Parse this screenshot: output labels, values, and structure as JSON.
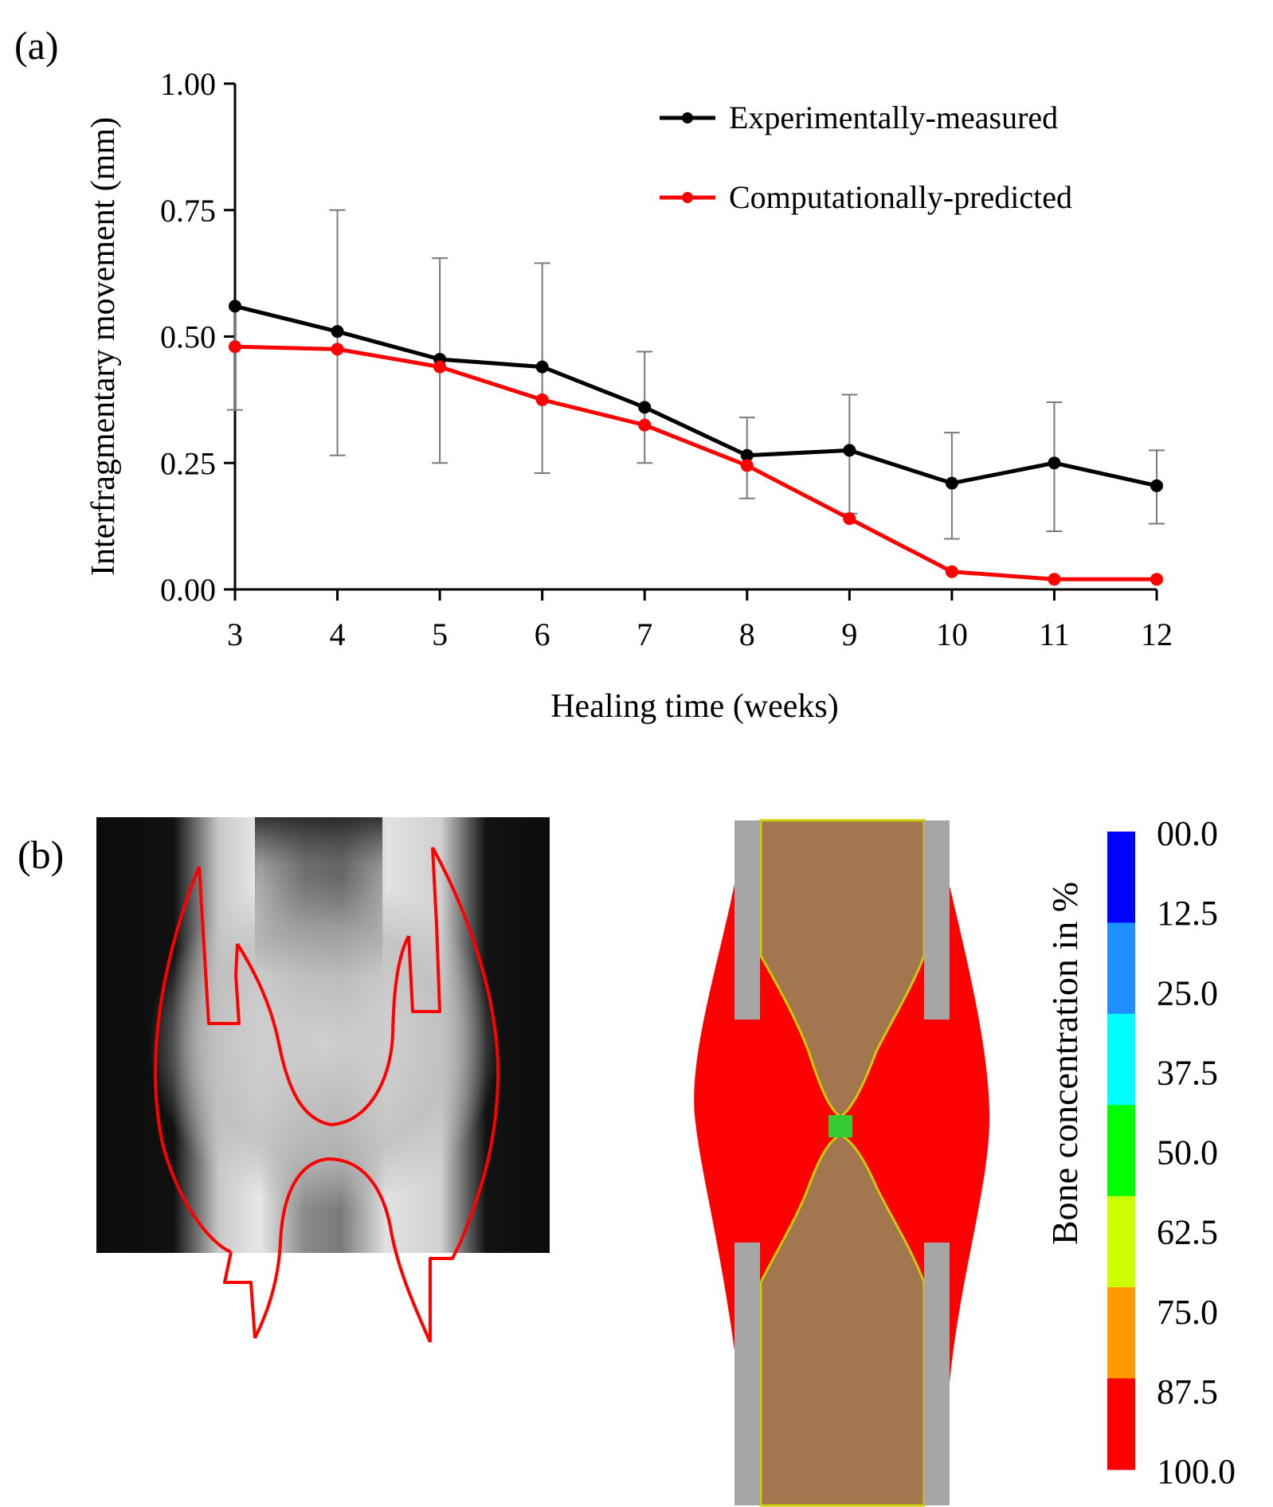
{
  "panels": {
    "a": {
      "label": "(a)"
    },
    "b": {
      "label": "(b)"
    }
  },
  "chart_data": {
    "type": "line",
    "title": "",
    "xlabel": "Healing time (weeks)",
    "ylabel": "Interfragmentary movement (mm)",
    "x": [
      3,
      4,
      5,
      6,
      7,
      8,
      9,
      10,
      11,
      12
    ],
    "xlim": [
      3,
      12
    ],
    "ylim": [
      0,
      1
    ],
    "yticks": [
      0,
      0.25,
      0.5,
      0.75,
      1.0
    ],
    "ytick_labels": [
      "0.00",
      "0.25",
      "0.50",
      "0.75",
      "1.00"
    ],
    "xtick_labels": [
      "3",
      "4",
      "5",
      "6",
      "7",
      "8",
      "9",
      "10",
      "11",
      "12"
    ],
    "grid": false,
    "legend_position": "top-right",
    "series": [
      {
        "name": "Experimentally-measured",
        "color": "#000000",
        "values": [
          0.56,
          0.51,
          0.455,
          0.44,
          0.36,
          0.265,
          0.275,
          0.21,
          0.25,
          0.205
        ],
        "error_upper": [
          null,
          0.75,
          0.655,
          0.645,
          0.47,
          0.34,
          0.385,
          0.31,
          0.37,
          0.275
        ],
        "error_lower": [
          0.355,
          0.265,
          0.25,
          0.23,
          0.25,
          0.18,
          0.15,
          0.1,
          0.115,
          0.13
        ]
      },
      {
        "name": "Computationally-predicted",
        "color": "#ff0000",
        "values": [
          0.48,
          0.475,
          0.44,
          0.375,
          0.325,
          0.245,
          0.14,
          0.035,
          0.02,
          0.02
        ]
      }
    ]
  },
  "colorbar": {
    "title": "Bone concentration in %",
    "labels": [
      "00.0",
      "12.5",
      "25.0",
      "37.5",
      "50.0",
      "62.5",
      "75.0",
      "87.5",
      "100.0"
    ],
    "colors": [
      "#0000ff",
      "#1e90ff",
      "#00ffff",
      "#00ff00",
      "#ccff00",
      "#ff9900",
      "#ff0000"
    ]
  },
  "colors": {
    "experimental": "#000000",
    "predicted": "#ff0000",
    "implant": "#a6a6a6",
    "bone": "#a27750",
    "callus": "#ff0000"
  }
}
